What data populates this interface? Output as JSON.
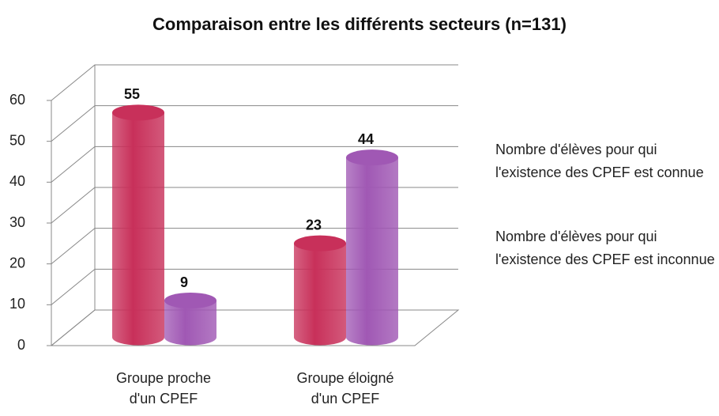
{
  "chart_data": {
    "type": "bar3d",
    "title": "Comparaison entre les différents secteurs (n=131)",
    "categories": [
      "Groupe proche d'un CPEF",
      "Groupe éloigné d'un CPEF"
    ],
    "series": [
      {
        "name": "Nombre d'élèves pour qui l'existence des CPEF est connue",
        "color": "#c8305a",
        "values": [
          55,
          23
        ]
      },
      {
        "name": "Nombre d'élèves pour qui l'existence des CPEF est inconnue",
        "color": "#a058b4",
        "values": [
          9,
          44
        ]
      }
    ],
    "ylim": [
      0,
      60
    ],
    "yticks": [
      0,
      10,
      20,
      30,
      40,
      50,
      60
    ],
    "grid": true,
    "legend": "right"
  }
}
